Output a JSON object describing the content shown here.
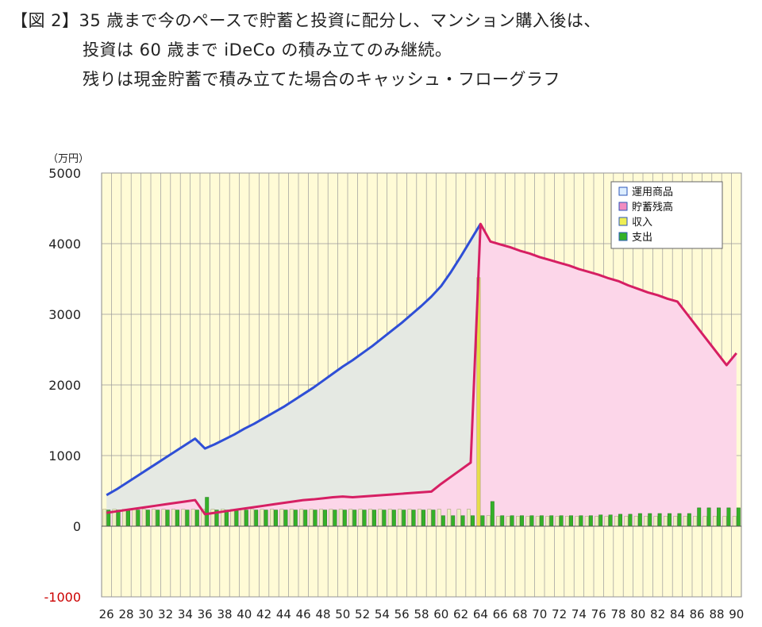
{
  "caption": {
    "line1": "【図 2】35 歳まで今のペースで貯蓄と投資に配分し、マンション購入後は、",
    "line2": "投資は 60 歳まで iDeCo の積み立てのみ継続。",
    "line3": "残りは現金貯蓄で積み立てた場合のキャッシュ・フローグラフ"
  },
  "chart_data": {
    "type": "bar+line+area",
    "unit_label": "（万円）",
    "ylim": [
      -1000,
      5000
    ],
    "yticks": [
      5000,
      4000,
      3000,
      2000,
      1000,
      0,
      -1000
    ],
    "negative_tick_color": "#cc0000",
    "x": [
      26,
      27,
      28,
      29,
      30,
      31,
      32,
      33,
      34,
      35,
      36,
      37,
      38,
      39,
      40,
      41,
      42,
      43,
      44,
      45,
      46,
      47,
      48,
      49,
      50,
      51,
      52,
      53,
      54,
      55,
      56,
      57,
      58,
      59,
      60,
      61,
      62,
      63,
      64,
      65,
      66,
      67,
      68,
      69,
      70,
      71,
      72,
      73,
      74,
      75,
      76,
      77,
      78,
      79,
      80,
      81,
      82,
      83,
      84,
      85,
      86,
      87,
      88,
      89,
      90
    ],
    "xtick_labels": [
      "26",
      "28",
      "30",
      "32",
      "34",
      "36",
      "38",
      "40",
      "42",
      "44",
      "46",
      "48",
      "50",
      "52",
      "54",
      "56",
      "58",
      "60",
      "62",
      "64",
      "66",
      "68",
      "70",
      "72",
      "74",
      "76",
      "78",
      "80",
      "82",
      "84",
      "86",
      "88",
      "90"
    ],
    "legend": [
      "運用商品",
      "貯蓄残高",
      "収入",
      "支出"
    ],
    "colors": {
      "plot_bg": "#fffbd6",
      "investment_line": "#2f4fd6",
      "investment_fill": "#e5e9e3",
      "savings_line": "#d61f63",
      "savings_fill": "#fcd6e9",
      "income_bar": "#eef0c0",
      "income_spike": "#e6dd4a",
      "expense_bar": "#34b128",
      "investment_swatch": "#ddeeff",
      "savings_swatch": "#f28cc0",
      "income_swatch": "#eeee55"
    },
    "series": [
      {
        "name": "運用商品",
        "kind": "line-area",
        "values": [
          440,
          520,
          610,
          700,
          790,
          880,
          970,
          1060,
          1150,
          1240,
          1100,
          1160,
          1230,
          1300,
          1380,
          1450,
          1530,
          1610,
          1690,
          1780,
          1870,
          1960,
          2060,
          2160,
          2260,
          2350,
          2450,
          2550,
          2660,
          2770,
          2880,
          3000,
          3120,
          3250,
          3400,
          3600,
          3820,
          4050,
          4280,
          null,
          null,
          null,
          null,
          null,
          null,
          null,
          null,
          null,
          null,
          null,
          null,
          null,
          null,
          null,
          null,
          null,
          null,
          null,
          null,
          null,
          null,
          null,
          null,
          null,
          null
        ]
      },
      {
        "name": "貯蓄残高",
        "kind": "line-area",
        "values": [
          190,
          210,
          230,
          250,
          270,
          290,
          310,
          330,
          350,
          370,
          170,
          190,
          210,
          230,
          250,
          270,
          290,
          310,
          330,
          350,
          370,
          380,
          395,
          410,
          420,
          410,
          420,
          430,
          440,
          450,
          460,
          470,
          480,
          490,
          600,
          700,
          800,
          900,
          4280,
          4030,
          3990,
          3950,
          3900,
          3860,
          3810,
          3770,
          3730,
          3690,
          3640,
          3600,
          3560,
          3510,
          3470,
          3410,
          3360,
          3310,
          3270,
          3220,
          3180,
          3000,
          2820,
          2640,
          2460,
          2280,
          2450
        ]
      },
      {
        "name": "収入",
        "kind": "bar",
        "values": [
          240,
          240,
          240,
          240,
          240,
          240,
          240,
          240,
          240,
          240,
          240,
          240,
          240,
          240,
          240,
          240,
          240,
          240,
          240,
          240,
          240,
          240,
          240,
          240,
          240,
          240,
          240,
          240,
          240,
          240,
          240,
          240,
          240,
          240,
          240,
          240,
          240,
          240,
          3520,
          150,
          140,
          140,
          140,
          140,
          140,
          140,
          140,
          140,
          140,
          140,
          140,
          140,
          140,
          140,
          140,
          140,
          140,
          140,
          140,
          140,
          140,
          140,
          140,
          140,
          140
        ]
      },
      {
        "name": "支出",
        "kind": "bar",
        "values": [
          230,
          230,
          230,
          230,
          230,
          230,
          230,
          230,
          230,
          230,
          410,
          230,
          230,
          230,
          230,
          230,
          230,
          230,
          230,
          230,
          230,
          230,
          230,
          230,
          230,
          230,
          230,
          230,
          230,
          230,
          230,
          230,
          230,
          230,
          150,
          150,
          150,
          150,
          150,
          350,
          150,
          150,
          150,
          150,
          150,
          150,
          150,
          150,
          150,
          150,
          160,
          160,
          170,
          170,
          180,
          180,
          180,
          180,
          180,
          180,
          260,
          260,
          260,
          260,
          260
        ]
      }
    ]
  }
}
